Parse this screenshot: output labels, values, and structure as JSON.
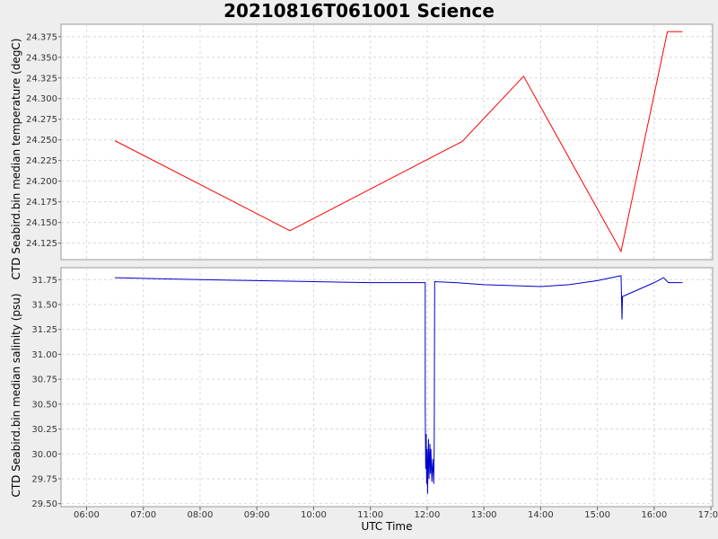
{
  "chart_data": [
    {
      "type": "line",
      "title": "20210816T061001 Science",
      "ylabel": "CTD Seabird.bin median temperature (degC)",
      "ylim": [
        24.105,
        24.39
      ],
      "yticks": [
        "24.125",
        "24.150",
        "24.175",
        "24.200",
        "24.225",
        "24.250",
        "24.275",
        "24.300",
        "24.325",
        "24.350",
        "24.375"
      ],
      "grid": true,
      "series": [
        {
          "color": "#ff0000",
          "points": [
            [
              "06:30",
              24.249
            ],
            [
              "09:35",
              24.14
            ],
            [
              "12:37",
              24.248
            ],
            [
              "13:42",
              24.327
            ],
            [
              "15:25",
              24.115
            ],
            [
              "16:14",
              24.381
            ],
            [
              "16:30",
              24.381
            ]
          ]
        }
      ]
    },
    {
      "type": "line",
      "ylabel": "CTD Seabird.bin median salinity (psu)",
      "xlabel": "UTC Time",
      "ylim": [
        29.47,
        31.87
      ],
      "yticks": [
        "29.50",
        "29.75",
        "30.00",
        "30.25",
        "30.50",
        "30.75",
        "31.00",
        "31.25",
        "31.50",
        "31.75"
      ],
      "xticks": [
        "06:00",
        "07:00",
        "08:00",
        "09:00",
        "10:00",
        "11:00",
        "12:00",
        "13:00",
        "14:00",
        "15:00",
        "16:00",
        "17:00"
      ],
      "grid": true,
      "series": [
        {
          "color": "#0000cc",
          "points": [
            [
              "06:30",
              31.77
            ],
            [
              "07:15",
              31.76
            ],
            [
              "08:00",
              31.75
            ],
            [
              "09:00",
              31.74
            ],
            [
              "10:00",
              31.73
            ],
            [
              "11:00",
              31.72
            ],
            [
              "11:58",
              31.72
            ],
            [
              "11:58",
              30.47
            ],
            [
              "11:58.5",
              29.85
            ],
            [
              "11:59",
              30.2
            ],
            [
              "11:59.5",
              29.7
            ],
            [
              "12:00",
              30.05
            ],
            [
              "12:00.5",
              29.6
            ],
            [
              "12:01",
              29.9
            ],
            [
              "12:01.5",
              30.15
            ],
            [
              "12:02",
              29.75
            ],
            [
              "12:03",
              30.1
            ],
            [
              "12:03.5",
              29.8
            ],
            [
              "12:04",
              30.05
            ],
            [
              "12:05",
              29.72
            ],
            [
              "12:06",
              29.95
            ],
            [
              "12:07",
              29.7
            ],
            [
              "12:07.5",
              30.05
            ],
            [
              "12:08",
              31.73
            ],
            [
              "12:30",
              31.72
            ],
            [
              "13:00",
              31.7
            ],
            [
              "14:00",
              31.68
            ],
            [
              "14:30",
              31.7
            ],
            [
              "15:00",
              31.74
            ],
            [
              "15:25",
              31.79
            ],
            [
              "15:26",
              31.35
            ],
            [
              "15:26.5",
              31.58
            ],
            [
              "16:00",
              31.72
            ],
            [
              "16:10",
              31.77
            ],
            [
              "16:15",
              31.72
            ],
            [
              "16:30",
              31.72
            ]
          ]
        }
      ]
    }
  ]
}
